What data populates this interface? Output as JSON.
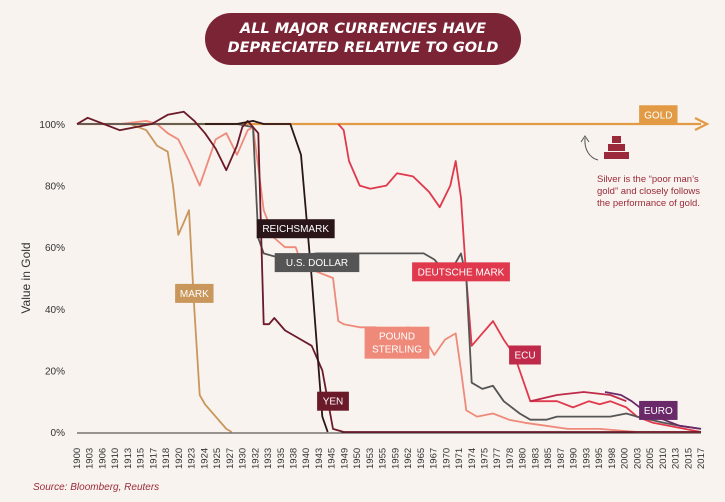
{
  "title_line1": "ALL MAJOR CURRENCIES HAVE",
  "title_line2": "DEPRECIATED RELATIVE TO GOLD",
  "source": "Source: Bloomberg, Reuters",
  "note": "Silver is the “poor man’s gold” and closely follows the performance of gold.",
  "chart_data": {
    "type": "line",
    "ylabel": "Value in Gold",
    "ylim": [
      0,
      100
    ],
    "yticks": [
      "0%",
      "20%",
      "40%",
      "60%",
      "80%",
      "100%"
    ],
    "ytick_values": [
      0,
      20,
      40,
      60,
      80,
      100
    ],
    "xlim": [
      1900,
      2017
    ],
    "xticks": [
      1900,
      1903,
      1906,
      1910,
      1913,
      1915,
      1917,
      1918,
      1920,
      1923,
      1924,
      1925,
      1927,
      1930,
      1932,
      1933,
      1935,
      1938,
      1940,
      1943,
      1945,
      1949,
      1950,
      1953,
      1955,
      1959,
      1962,
      1965,
      1967,
      1970,
      1971,
      1974,
      1975,
      1977,
      1978,
      1980,
      1983,
      1985,
      1987,
      1990,
      1993,
      1995,
      1998,
      2000,
      2003,
      2005,
      2010,
      2013,
      2015,
      2017
    ],
    "gold_label": "GOLD",
    "series": [
      {
        "name": "GOLD",
        "color": "#e29a45",
        "label_year": 2009,
        "label_value": 103,
        "points": [
          [
            1900,
            100
          ],
          [
            2017,
            100
          ]
        ]
      },
      {
        "name": "MARK",
        "color": "#c9975c",
        "label_year": 1922,
        "label_value": 45,
        "points": [
          [
            1900,
            100
          ],
          [
            1910,
            100
          ],
          [
            1913,
            98
          ],
          [
            1915,
            93
          ],
          [
            1917,
            91
          ],
          [
            1918,
            80
          ],
          [
            1919,
            64
          ],
          [
            1920,
            68
          ],
          [
            1921,
            72
          ],
          [
            1922,
            40
          ],
          [
            1923,
            12
          ],
          [
            1924,
            9
          ],
          [
            1926,
            5
          ],
          [
            1928,
            1
          ],
          [
            1929,
            0
          ]
        ]
      },
      {
        "name": "POUND STERLING",
        "color": "#ef8a7a",
        "label_year": 1960,
        "label_value": 29,
        "points": [
          [
            1900,
            100
          ],
          [
            1908,
            100
          ],
          [
            1913,
            101
          ],
          [
            1915,
            100
          ],
          [
            1917,
            97
          ],
          [
            1919,
            95
          ],
          [
            1921,
            88
          ],
          [
            1923,
            80
          ],
          [
            1926,
            95
          ],
          [
            1928,
            97
          ],
          [
            1930,
            90
          ],
          [
            1932,
            98
          ],
          [
            1933,
            99
          ],
          [
            1934,
            86
          ],
          [
            1935,
            72
          ],
          [
            1937,
            63
          ],
          [
            1939,
            60
          ],
          [
            1941,
            60
          ],
          [
            1942,
            55
          ],
          [
            1945,
            52
          ],
          [
            1948,
            50
          ],
          [
            1949,
            36
          ],
          [
            1950,
            35
          ],
          [
            1953,
            34
          ],
          [
            1956,
            34
          ],
          [
            1959,
            32
          ],
          [
            1962,
            34
          ],
          [
            1964,
            33
          ],
          [
            1966,
            28
          ],
          [
            1967,
            25
          ],
          [
            1969,
            30
          ],
          [
            1971,
            32
          ],
          [
            1972,
            20
          ],
          [
            1973,
            7
          ],
          [
            1975,
            5
          ],
          [
            1978,
            6
          ],
          [
            1981,
            4
          ],
          [
            1984,
            3
          ],
          [
            1988,
            2
          ],
          [
            1992,
            1
          ],
          [
            1998,
            1
          ],
          [
            2005,
            0
          ],
          [
            2017,
            0
          ]
        ]
      },
      {
        "name": "DEUTSCHE MARK",
        "color": "#e0394d",
        "label_year": 1972,
        "label_value": 52,
        "points": [
          [
            1949,
            100
          ],
          [
            1950,
            98
          ],
          [
            1951,
            88
          ],
          [
            1953,
            80
          ],
          [
            1955,
            79
          ],
          [
            1958,
            80
          ],
          [
            1960,
            84
          ],
          [
            1963,
            83
          ],
          [
            1966,
            78
          ],
          [
            1968,
            73
          ],
          [
            1970,
            80
          ],
          [
            1971,
            88
          ],
          [
            1972,
            76
          ],
          [
            1973,
            50
          ],
          [
            1974,
            28
          ],
          [
            1976,
            32
          ],
          [
            1978,
            36
          ],
          [
            1980,
            30
          ],
          [
            1982,
            25
          ],
          [
            1985,
            10
          ],
          [
            1988,
            10
          ],
          [
            1990,
            10
          ],
          [
            1993,
            8
          ],
          [
            1996,
            10
          ],
          [
            1998,
            9
          ],
          [
            2000,
            10
          ],
          [
            2003,
            8
          ],
          [
            2005,
            5
          ],
          [
            2008,
            3
          ],
          [
            2017,
            0
          ]
        ]
      },
      {
        "name": "U.S. DOLLAR",
        "color": "#555555",
        "label_year": 1945,
        "label_value": 55,
        "points": [
          [
            1900,
            100
          ],
          [
            1910,
            100
          ],
          [
            1920,
            100
          ],
          [
            1930,
            100
          ],
          [
            1933,
            99
          ],
          [
            1934,
            63
          ],
          [
            1935,
            58
          ],
          [
            1937,
            57
          ],
          [
            1940,
            57
          ],
          [
            1945,
            58
          ],
          [
            1950,
            58
          ],
          [
            1955,
            58
          ],
          [
            1960,
            58
          ],
          [
            1965,
            58
          ],
          [
            1967,
            56
          ],
          [
            1969,
            52
          ],
          [
            1971,
            55
          ],
          [
            1972,
            58
          ],
          [
            1973,
            50
          ],
          [
            1974,
            16
          ],
          [
            1976,
            14
          ],
          [
            1978,
            15
          ],
          [
            1980,
            10
          ],
          [
            1983,
            6
          ],
          [
            1985,
            4
          ],
          [
            1988,
            4
          ],
          [
            1990,
            5
          ],
          [
            1995,
            5
          ],
          [
            2000,
            5
          ],
          [
            2003,
            6
          ],
          [
            2005,
            5
          ],
          [
            2010,
            3
          ],
          [
            2013,
            2
          ],
          [
            2017,
            1
          ]
        ]
      },
      {
        "name": "YEN",
        "color": "#6b1a2a",
        "label_year": 1948,
        "label_value": 10,
        "points": [
          [
            1900,
            100
          ],
          [
            1902,
            102
          ],
          [
            1905,
            100
          ],
          [
            1908,
            98
          ],
          [
            1911,
            99
          ],
          [
            1914,
            100
          ],
          [
            1917,
            103
          ],
          [
            1920,
            104
          ],
          [
            1922,
            101
          ],
          [
            1924,
            97
          ],
          [
            1926,
            92
          ],
          [
            1928,
            85
          ],
          [
            1930,
            93
          ],
          [
            1931,
            99
          ],
          [
            1932,
            101
          ],
          [
            1933,
            99
          ],
          [
            1934,
            97
          ],
          [
            1935,
            35
          ],
          [
            1936,
            35
          ],
          [
            1937,
            37
          ],
          [
            1939,
            33
          ],
          [
            1942,
            30
          ],
          [
            1944,
            28
          ],
          [
            1946,
            20
          ],
          [
            1948,
            1
          ],
          [
            1950,
            0
          ],
          [
            2017,
            0
          ]
        ]
      },
      {
        "name": "REICHSMARK",
        "color": "#2a1618",
        "label_year": 1941,
        "label_value": 66,
        "points": [
          [
            1924,
            100
          ],
          [
            1930,
            100
          ],
          [
            1933,
            101
          ],
          [
            1935,
            100
          ],
          [
            1938,
            100
          ],
          [
            1940,
            100
          ],
          [
            1942,
            90
          ],
          [
            1944,
            50
          ],
          [
            1946,
            5
          ],
          [
            1947,
            0
          ]
        ]
      },
      {
        "name": "ECU",
        "color": "#c02a4a",
        "label_year": 1984,
        "label_value": 25,
        "points": [
          [
            1985,
            10
          ],
          [
            1990,
            12
          ],
          [
            1995,
            13
          ],
          [
            2000,
            12
          ],
          [
            2003,
            10
          ]
        ]
      },
      {
        "name": "EURO",
        "color": "#6a2a6a",
        "label_year": 2009,
        "label_value": 7,
        "points": [
          [
            1999,
            13
          ],
          [
            2002,
            12
          ],
          [
            2004,
            10
          ],
          [
            2007,
            6
          ],
          [
            2010,
            4
          ],
          [
            2013,
            2
          ],
          [
            2017,
            1
          ]
        ]
      }
    ]
  }
}
